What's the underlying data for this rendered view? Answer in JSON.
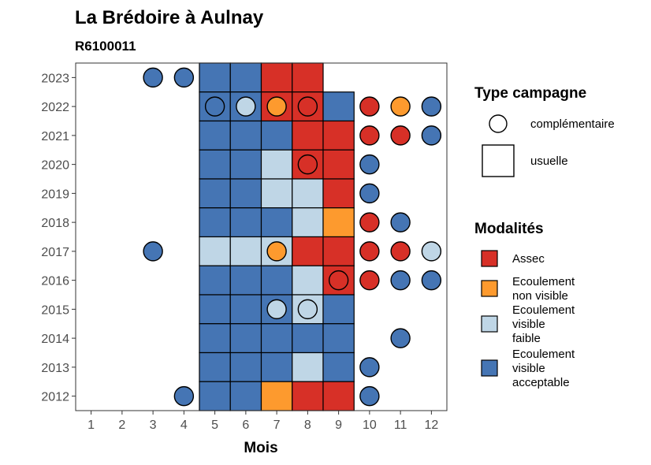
{
  "chart_data": {
    "type": "heatmap",
    "title": "La Brédoire à Aulnay",
    "subtitle": "R6100011",
    "xlabel": "Mois",
    "ylabel": "",
    "x_ticks": [
      1,
      2,
      3,
      4,
      5,
      6,
      7,
      8,
      9,
      10,
      11,
      12
    ],
    "y_ticks": [
      2012,
      2013,
      2014,
      2015,
      2016,
      2017,
      2018,
      2019,
      2020,
      2021,
      2022,
      2023
    ],
    "xlim": [
      0.5,
      12.5
    ],
    "ylim": [
      2011.5,
      2023.5
    ],
    "grid": false,
    "colors": {
      "Assec": "#d73027",
      "Ecoulement non visible": "#fd9a2e",
      "Ecoulement visible faible": "#bfd6e6",
      "Ecoulement visible acceptable": "#4575b4"
    },
    "usuelle": [
      {
        "year": 2023,
        "month": 5,
        "modalite": "Ecoulement visible acceptable"
      },
      {
        "year": 2023,
        "month": 6,
        "modalite": "Ecoulement visible acceptable"
      },
      {
        "year": 2023,
        "month": 7,
        "modalite": "Assec"
      },
      {
        "year": 2023,
        "month": 8,
        "modalite": "Assec"
      },
      {
        "year": 2022,
        "month": 5,
        "modalite": "Ecoulement visible acceptable"
      },
      {
        "year": 2022,
        "month": 6,
        "modalite": "Ecoulement visible acceptable"
      },
      {
        "year": 2022,
        "month": 7,
        "modalite": "Assec"
      },
      {
        "year": 2022,
        "month": 8,
        "modalite": "Assec"
      },
      {
        "year": 2022,
        "month": 9,
        "modalite": "Ecoulement visible acceptable"
      },
      {
        "year": 2021,
        "month": 5,
        "modalite": "Ecoulement visible acceptable"
      },
      {
        "year": 2021,
        "month": 6,
        "modalite": "Ecoulement visible acceptable"
      },
      {
        "year": 2021,
        "month": 7,
        "modalite": "Ecoulement visible acceptable"
      },
      {
        "year": 2021,
        "month": 8,
        "modalite": "Assec"
      },
      {
        "year": 2021,
        "month": 9,
        "modalite": "Assec"
      },
      {
        "year": 2020,
        "month": 5,
        "modalite": "Ecoulement visible acceptable"
      },
      {
        "year": 2020,
        "month": 6,
        "modalite": "Ecoulement visible acceptable"
      },
      {
        "year": 2020,
        "month": 7,
        "modalite": "Ecoulement visible faible"
      },
      {
        "year": 2020,
        "month": 8,
        "modalite": "Assec"
      },
      {
        "year": 2020,
        "month": 9,
        "modalite": "Assec"
      },
      {
        "year": 2019,
        "month": 5,
        "modalite": "Ecoulement visible acceptable"
      },
      {
        "year": 2019,
        "month": 6,
        "modalite": "Ecoulement visible acceptable"
      },
      {
        "year": 2019,
        "month": 7,
        "modalite": "Ecoulement visible faible"
      },
      {
        "year": 2019,
        "month": 8,
        "modalite": "Ecoulement visible faible"
      },
      {
        "year": 2019,
        "month": 9,
        "modalite": "Assec"
      },
      {
        "year": 2018,
        "month": 5,
        "modalite": "Ecoulement visible acceptable"
      },
      {
        "year": 2018,
        "month": 6,
        "modalite": "Ecoulement visible acceptable"
      },
      {
        "year": 2018,
        "month": 7,
        "modalite": "Ecoulement visible acceptable"
      },
      {
        "year": 2018,
        "month": 8,
        "modalite": "Ecoulement visible faible"
      },
      {
        "year": 2018,
        "month": 9,
        "modalite": "Ecoulement non visible"
      },
      {
        "year": 2017,
        "month": 5,
        "modalite": "Ecoulement visible faible"
      },
      {
        "year": 2017,
        "month": 6,
        "modalite": "Ecoulement visible faible"
      },
      {
        "year": 2017,
        "month": 7,
        "modalite": "Ecoulement visible faible"
      },
      {
        "year": 2017,
        "month": 8,
        "modalite": "Assec"
      },
      {
        "year": 2017,
        "month": 9,
        "modalite": "Assec"
      },
      {
        "year": 2016,
        "month": 5,
        "modalite": "Ecoulement visible acceptable"
      },
      {
        "year": 2016,
        "month": 6,
        "modalite": "Ecoulement visible acceptable"
      },
      {
        "year": 2016,
        "month": 7,
        "modalite": "Ecoulement visible acceptable"
      },
      {
        "year": 2016,
        "month": 8,
        "modalite": "Ecoulement visible faible"
      },
      {
        "year": 2016,
        "month": 9,
        "modalite": "Assec"
      },
      {
        "year": 2015,
        "month": 5,
        "modalite": "Ecoulement visible acceptable"
      },
      {
        "year": 2015,
        "month": 6,
        "modalite": "Ecoulement visible acceptable"
      },
      {
        "year": 2015,
        "month": 7,
        "modalite": "Ecoulement visible acceptable"
      },
      {
        "year": 2015,
        "month": 8,
        "modalite": "Ecoulement visible faible"
      },
      {
        "year": 2015,
        "month": 9,
        "modalite": "Ecoulement visible acceptable"
      },
      {
        "year": 2014,
        "month": 5,
        "modalite": "Ecoulement visible acceptable"
      },
      {
        "year": 2014,
        "month": 6,
        "modalite": "Ecoulement visible acceptable"
      },
      {
        "year": 2014,
        "month": 7,
        "modalite": "Ecoulement visible acceptable"
      },
      {
        "year": 2014,
        "month": 8,
        "modalite": "Ecoulement visible acceptable"
      },
      {
        "year": 2014,
        "month": 9,
        "modalite": "Ecoulement visible acceptable"
      },
      {
        "year": 2013,
        "month": 5,
        "modalite": "Ecoulement visible acceptable"
      },
      {
        "year": 2013,
        "month": 6,
        "modalite": "Ecoulement visible acceptable"
      },
      {
        "year": 2013,
        "month": 7,
        "modalite": "Ecoulement visible acceptable"
      },
      {
        "year": 2013,
        "month": 8,
        "modalite": "Ecoulement visible faible"
      },
      {
        "year": 2013,
        "month": 9,
        "modalite": "Ecoulement visible acceptable"
      },
      {
        "year": 2012,
        "month": 5,
        "modalite": "Ecoulement visible acceptable"
      },
      {
        "year": 2012,
        "month": 6,
        "modalite": "Ecoulement visible acceptable"
      },
      {
        "year": 2012,
        "month": 7,
        "modalite": "Ecoulement non visible"
      },
      {
        "year": 2012,
        "month": 8,
        "modalite": "Assec"
      },
      {
        "year": 2012,
        "month": 9,
        "modalite": "Assec"
      }
    ],
    "complementaire": [
      {
        "year": 2023,
        "month": 3,
        "modalite": "Ecoulement visible acceptable"
      },
      {
        "year": 2023,
        "month": 4,
        "modalite": "Ecoulement visible acceptable"
      },
      {
        "year": 2022,
        "month": 5,
        "modalite": "Ecoulement visible acceptable"
      },
      {
        "year": 2022,
        "month": 6,
        "modalite": "Ecoulement visible faible"
      },
      {
        "year": 2022,
        "month": 7,
        "modalite": "Ecoulement non visible"
      },
      {
        "year": 2022,
        "month": 8,
        "modalite": "Assec"
      },
      {
        "year": 2022,
        "month": 10,
        "modalite": "Assec"
      },
      {
        "year": 2022,
        "month": 11,
        "modalite": "Ecoulement non visible"
      },
      {
        "year": 2022,
        "month": 12,
        "modalite": "Ecoulement visible acceptable"
      },
      {
        "year": 2021,
        "month": 10,
        "modalite": "Assec"
      },
      {
        "year": 2021,
        "month": 11,
        "modalite": "Assec"
      },
      {
        "year": 2021,
        "month": 12,
        "modalite": "Ecoulement visible acceptable"
      },
      {
        "year": 2020,
        "month": 8,
        "modalite": "Assec"
      },
      {
        "year": 2020,
        "month": 10,
        "modalite": "Ecoulement visible acceptable"
      },
      {
        "year": 2019,
        "month": 10,
        "modalite": "Ecoulement visible acceptable"
      },
      {
        "year": 2018,
        "month": 10,
        "modalite": "Assec"
      },
      {
        "year": 2018,
        "month": 11,
        "modalite": "Ecoulement visible acceptable"
      },
      {
        "year": 2017,
        "month": 3,
        "modalite": "Ecoulement visible acceptable"
      },
      {
        "year": 2017,
        "month": 7,
        "modalite": "Ecoulement non visible"
      },
      {
        "year": 2017,
        "month": 10,
        "modalite": "Assec"
      },
      {
        "year": 2017,
        "month": 11,
        "modalite": "Assec"
      },
      {
        "year": 2017,
        "month": 12,
        "modalite": "Ecoulement visible faible"
      },
      {
        "year": 2016,
        "month": 9,
        "modalite": "Assec"
      },
      {
        "year": 2016,
        "month": 10,
        "modalite": "Assec"
      },
      {
        "year": 2016,
        "month": 11,
        "modalite": "Ecoulement visible acceptable"
      },
      {
        "year": 2016,
        "month": 12,
        "modalite": "Ecoulement visible acceptable"
      },
      {
        "year": 2015,
        "month": 7,
        "modalite": "Ecoulement visible faible"
      },
      {
        "year": 2015,
        "month": 8,
        "modalite": "Ecoulement visible faible"
      },
      {
        "year": 2014,
        "month": 11,
        "modalite": "Ecoulement visible acceptable"
      },
      {
        "year": 2013,
        "month": 10,
        "modalite": "Ecoulement visible acceptable"
      },
      {
        "year": 2012,
        "month": 4,
        "modalite": "Ecoulement visible acceptable"
      },
      {
        "year": 2012,
        "month": 10,
        "modalite": "Ecoulement visible acceptable"
      }
    ],
    "legend": {
      "placement": "right",
      "type_title": "Type campagne",
      "type_items": [
        {
          "shape": "circle",
          "label": "complémentaire"
        },
        {
          "shape": "square",
          "label": "usuelle"
        }
      ],
      "modalites_title": "Modalités",
      "modalites_items": [
        {
          "key": "Assec",
          "lines": [
            "Assec"
          ]
        },
        {
          "key": "Ecoulement non visible",
          "lines": [
            "Ecoulement",
            "non visible"
          ]
        },
        {
          "key": "Ecoulement visible faible",
          "lines": [
            "Ecoulement",
            "visible",
            "faible"
          ]
        },
        {
          "key": "Ecoulement visible acceptable",
          "lines": [
            "Ecoulement",
            "visible",
            "acceptable"
          ]
        }
      ]
    }
  }
}
